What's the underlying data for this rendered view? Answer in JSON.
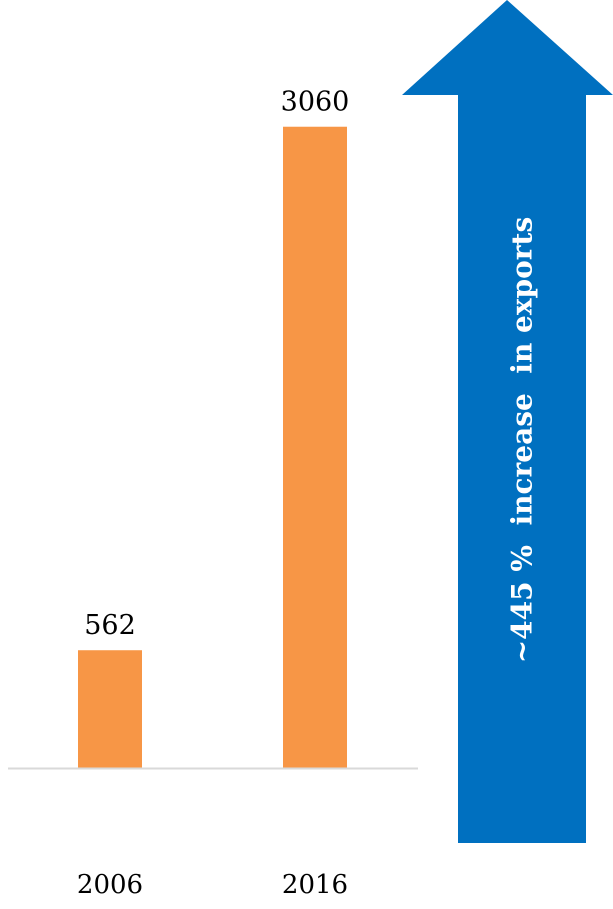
{
  "chart_data": {
    "type": "bar",
    "categories": [
      "2006",
      "2016"
    ],
    "values": [
      562,
      3060
    ],
    "data_labels": [
      "562",
      "3060"
    ],
    "title": "",
    "xlabel": "",
    "ylabel": "",
    "ylim": [
      0,
      3450
    ],
    "grid": false,
    "legend": "none"
  },
  "annotation": {
    "text": "~445 %  increase  in exports",
    "direction": "up"
  },
  "colors": {
    "bar": "#F79646",
    "arrow": "#0070C0",
    "arrow_text": "#FFFFFF",
    "axis_line": "#D9D9D9",
    "label_text": "#000000"
  }
}
